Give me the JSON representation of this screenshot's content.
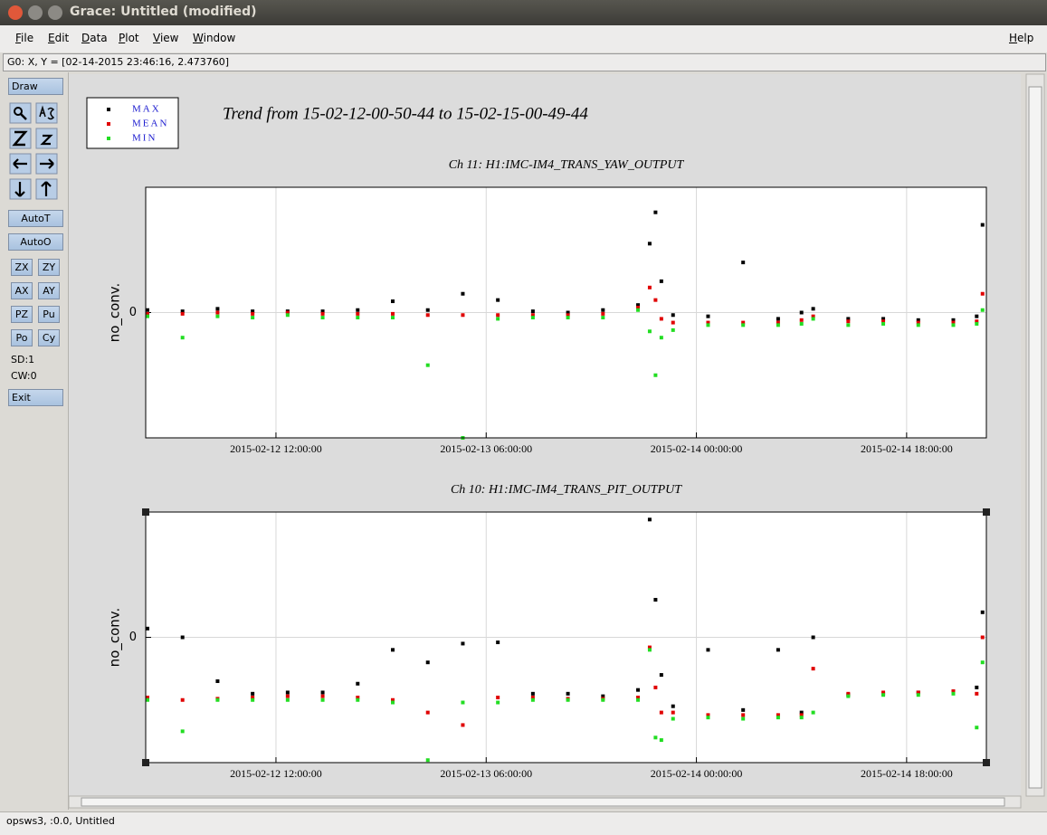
{
  "window": {
    "title": "Grace: Untitled (modified)"
  },
  "menu": [
    "File",
    "Edit",
    "Data",
    "Plot",
    "View",
    "Window"
  ],
  "help": "Help",
  "locator": "G0: X, Y = [02-14-2015 23:46:16, 2.473760]",
  "toolbar": {
    "draw": "Draw",
    "buttons": [
      "AutoT",
      "AutoO",
      "ZX",
      "ZY",
      "AX",
      "AY",
      "PZ",
      "Pu",
      "Po",
      "Cy"
    ],
    "sd": "SD:1",
    "cw": "CW:0",
    "exit": "Exit"
  },
  "status": "opsws3, :0.0, Untitled",
  "title": "Trend from 15-02-12-00-50-44 to 15-02-15-00-49-44",
  "chart_data": [
    {
      "type": "scatter",
      "title": "Ch 11: H1:IMC-IM4_TRANS_YAW_OUTPUT",
      "ylabel": "no_conv.",
      "x": [
        "2015-02-12 01:00:00",
        "2015-02-12 04:00:00",
        "2015-02-12 07:00:00",
        "2015-02-12 10:00:00",
        "2015-02-12 13:00:00",
        "2015-02-12 16:00:00",
        "2015-02-12 19:00:00",
        "2015-02-12 22:00:00",
        "2015-02-13 01:00:00",
        "2015-02-13 04:00:00",
        "2015-02-13 07:00:00",
        "2015-02-13 10:00:00",
        "2015-02-13 13:00:00",
        "2015-02-13 16:00:00",
        "2015-02-13 19:00:00",
        "2015-02-13 20:00:00",
        "2015-02-13 20:30:00",
        "2015-02-13 21:00:00",
        "2015-02-13 22:00:00",
        "2015-02-14 01:00:00",
        "2015-02-14 04:00:00",
        "2015-02-14 07:00:00",
        "2015-02-14 09:00:00",
        "2015-02-14 10:00:00",
        "2015-02-14 13:00:00",
        "2015-02-14 16:00:00",
        "2015-02-14 19:00:00",
        "2015-02-14 22:00:00",
        "2015-02-15 00:00:00",
        "2015-02-15 00:30:00"
      ],
      "series": [
        {
          "name": "MAX",
          "color": "#000000",
          "values": [
            0.02,
            0.01,
            0.03,
            0.01,
            0.01,
            0.01,
            0.02,
            0.09,
            0.02,
            0.15,
            0.1,
            0.01,
            0.0,
            0.02,
            0.06,
            0.55,
            0.8,
            0.25,
            -0.02,
            -0.03,
            0.4,
            -0.05,
            0.0,
            0.03,
            -0.05,
            -0.05,
            -0.06,
            -0.06,
            -0.03,
            0.7
          ]
        },
        {
          "name": "MEAN",
          "color": "#e00000",
          "values": [
            -0.01,
            -0.01,
            0.0,
            -0.01,
            0.0,
            -0.01,
            -0.01,
            -0.01,
            -0.02,
            -0.02,
            -0.02,
            -0.02,
            -0.02,
            -0.01,
            0.04,
            0.2,
            0.1,
            -0.05,
            -0.08,
            -0.08,
            -0.08,
            -0.08,
            -0.06,
            -0.03,
            -0.07,
            -0.07,
            -0.08,
            -0.08,
            -0.07,
            0.15
          ]
        },
        {
          "name": "MIN",
          "color": "#22dd22",
          "values": [
            -0.03,
            -0.2,
            -0.03,
            -0.04,
            -0.02,
            -0.04,
            -0.04,
            -0.04,
            -0.42,
            -1.0,
            -0.05,
            -0.04,
            -0.04,
            -0.04,
            0.02,
            -0.15,
            -0.5,
            -0.2,
            -0.14,
            -0.1,
            -0.1,
            -0.1,
            -0.09,
            -0.05,
            -0.1,
            -0.09,
            -0.1,
            -0.1,
            -0.09,
            0.02
          ]
        }
      ],
      "xlim": [
        "2015-02-12 00:50:44",
        "2015-02-15 00:49:44"
      ],
      "xticks": [
        "2015-02-12 12:00:00",
        "2015-02-13 06:00:00",
        "2015-02-14 00:00:00",
        "2015-02-14 18:00:00"
      ],
      "ylim": [
        -1,
        1
      ],
      "yticks": [
        0
      ],
      "grid": true
    },
    {
      "type": "scatter",
      "title": "Ch 10: H1:IMC-IM4_TRANS_PIT_OUTPUT",
      "ylabel": "no_conv.",
      "x": [
        "2015-02-12 01:00:00",
        "2015-02-12 04:00:00",
        "2015-02-12 07:00:00",
        "2015-02-12 10:00:00",
        "2015-02-12 13:00:00",
        "2015-02-12 16:00:00",
        "2015-02-12 19:00:00",
        "2015-02-12 22:00:00",
        "2015-02-13 01:00:00",
        "2015-02-13 04:00:00",
        "2015-02-13 07:00:00",
        "2015-02-13 10:00:00",
        "2015-02-13 13:00:00",
        "2015-02-13 16:00:00",
        "2015-02-13 19:00:00",
        "2015-02-13 20:00:00",
        "2015-02-13 20:30:00",
        "2015-02-13 21:00:00",
        "2015-02-13 22:00:00",
        "2015-02-14 01:00:00",
        "2015-02-14 04:00:00",
        "2015-02-14 07:00:00",
        "2015-02-14 09:00:00",
        "2015-02-14 10:00:00",
        "2015-02-14 13:00:00",
        "2015-02-14 16:00:00",
        "2015-02-14 19:00:00",
        "2015-02-14 22:00:00",
        "2015-02-15 00:00:00",
        "2015-02-15 00:30:00"
      ],
      "series": [
        {
          "color": "#000000",
          "values": [
            0.07,
            0.0,
            -0.35,
            -0.45,
            -0.44,
            -0.44,
            -0.37,
            -0.1,
            -0.2,
            -0.05,
            -0.04,
            -0.45,
            -0.45,
            -0.47,
            -0.42,
            0.94,
            0.3,
            -0.3,
            -0.55,
            -0.1,
            -0.58,
            -0.1,
            -0.6,
            0.0,
            -0.46,
            -0.45,
            -0.44,
            -0.43,
            -0.4,
            0.2
          ]
        },
        {
          "color": "#e00000",
          "values": [
            -0.48,
            -0.5,
            -0.49,
            -0.48,
            -0.47,
            -0.47,
            -0.48,
            -0.5,
            -0.6,
            -0.7,
            -0.48,
            -0.48,
            -0.49,
            -0.49,
            -0.48,
            -0.08,
            -0.4,
            -0.6,
            -0.6,
            -0.62,
            -0.62,
            -0.62,
            -0.62,
            -0.25,
            -0.45,
            -0.44,
            -0.44,
            -0.43,
            -0.45,
            0.0
          ]
        },
        {
          "color": "#22dd22",
          "values": [
            -0.5,
            -0.75,
            -0.5,
            -0.5,
            -0.5,
            -0.5,
            -0.5,
            -0.52,
            -0.98,
            -0.52,
            -0.52,
            -0.5,
            -0.5,
            -0.5,
            -0.5,
            -0.1,
            -0.8,
            -0.82,
            -0.65,
            -0.64,
            -0.65,
            -0.64,
            -0.64,
            -0.6,
            -0.47,
            -0.46,
            -0.46,
            -0.45,
            -0.72,
            -0.2
          ]
        }
      ],
      "xlim": [
        "2015-02-12 00:50:44",
        "2015-02-15 00:49:44"
      ],
      "xticks": [
        "2015-02-12 12:00:00",
        "2015-02-13 06:00:00",
        "2015-02-14 00:00:00",
        "2015-02-14 18:00:00"
      ],
      "ylim": [
        -1,
        1
      ],
      "yticks": [
        0
      ],
      "grid": true
    }
  ]
}
